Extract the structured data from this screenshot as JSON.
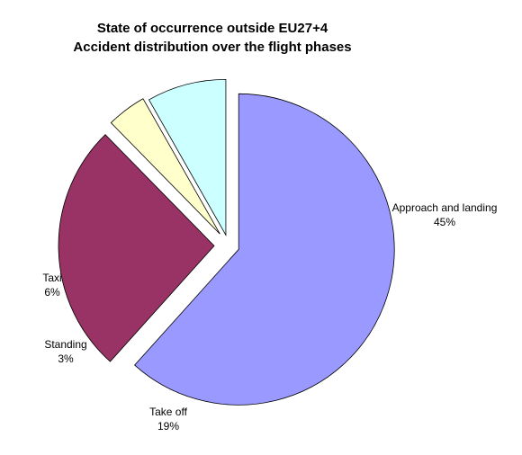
{
  "chart_data": {
    "type": "pie",
    "title": [
      "State of occurrence outside EU27+4",
      "Accident distribution over the flight phases"
    ],
    "start_angle_deg": 0,
    "direction": "clockwise",
    "exploded": true,
    "slices": [
      {
        "label": "Approach and landing",
        "value_label": "45%",
        "value": 45,
        "color": "#9999FF"
      },
      {
        "label": "Take off",
        "value_label": "19%",
        "value": 19,
        "color": "#993366"
      },
      {
        "label": "Standing",
        "value_label": "3%",
        "value": 3,
        "color": "#FFFFCC"
      },
      {
        "label": "Taxi",
        "value_label": "6%",
        "value": 6,
        "color": "#CCFFFF"
      }
    ]
  }
}
